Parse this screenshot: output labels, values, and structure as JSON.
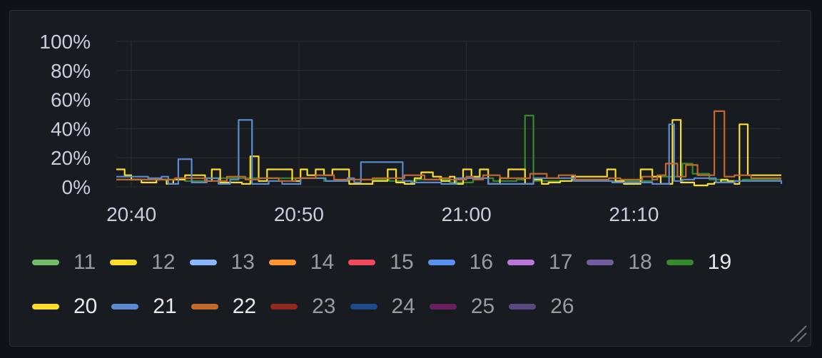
{
  "chart_data": {
    "type": "line",
    "x_ticks": [
      "20:40",
      "20:50",
      "21:00",
      "21:10"
    ],
    "x_tick_minutes": [
      0,
      10,
      20,
      30
    ],
    "x_range_minutes": [
      -0.9,
      38.8
    ],
    "y_ticks": [
      "0%",
      "20%",
      "40%",
      "60%",
      "80%",
      "100%"
    ],
    "ylim": [
      0,
      100
    ],
    "grid": true,
    "legend_position": "bottom",
    "legend": [
      {
        "name": "11",
        "color": "#73bf69",
        "visible": false
      },
      {
        "name": "12",
        "color": "#fade2a",
        "visible": false
      },
      {
        "name": "13",
        "color": "#8ab8ff",
        "visible": false
      },
      {
        "name": "14",
        "color": "#ff9830",
        "visible": false
      },
      {
        "name": "15",
        "color": "#f2495c",
        "visible": false
      },
      {
        "name": "16",
        "color": "#5794f2",
        "visible": false
      },
      {
        "name": "17",
        "color": "#b877d9",
        "visible": false
      },
      {
        "name": "18",
        "color": "#705da0",
        "visible": false
      },
      {
        "name": "19",
        "color": "#37872d",
        "visible": true
      },
      {
        "name": "20",
        "color": "#fade2a",
        "visible": true
      },
      {
        "name": "21",
        "color": "#5b8bd0",
        "visible": true
      },
      {
        "name": "22",
        "color": "#c4692e",
        "visible": true
      },
      {
        "name": "23",
        "color": "#8e2a1e",
        "visible": false
      },
      {
        "name": "24",
        "color": "#1f4a8a",
        "visible": false
      },
      {
        "name": "25",
        "color": "#6a1f5e",
        "visible": false
      },
      {
        "name": "26",
        "color": "#5a4a82",
        "visible": false
      }
    ],
    "series": [
      {
        "name": "19",
        "color": "#37872d",
        "x": [
          -0.9,
          3.2,
          4.4,
          11.5,
          13.0,
          15.4,
          17.0,
          19.0,
          20.4,
          21.6,
          23.0,
          23.5,
          24.0,
          26.3,
          28.4,
          31.1,
          32.9,
          33.5,
          34.5,
          35.2,
          36.5,
          38.8
        ],
        "y": [
          5,
          4,
          6,
          4,
          5,
          4,
          5,
          3,
          6,
          4,
          5,
          49,
          4,
          5,
          4,
          7,
          16,
          9,
          5,
          4,
          5,
          5
        ]
      },
      {
        "name": "20",
        "color": "#fade2a",
        "x": [
          -0.9,
          -0.4,
          0,
          0.6,
          1.5,
          2.1,
          2.5,
          3.2,
          4.4,
          4.8,
          5.3,
          6.6,
          7.1,
          7.6,
          8.1,
          8.6,
          9.6,
          10.1,
          10.5,
          11.0,
          11.5,
          12.0,
          13.0,
          13.9,
          14.4,
          15.3,
          15.8,
          16.3,
          16.9,
          17.3,
          18.0,
          18.5,
          19.0,
          19.3,
          19.8,
          20.3,
          20.8,
          21.3,
          22.0,
          22.5,
          23.5,
          24.0,
          24.5,
          24.9,
          25.6,
          26.3,
          27.0,
          28.4,
          28.9,
          29.4,
          30.4,
          31.1,
          31.6,
          32.3,
          32.8,
          33.6,
          34.4,
          34.8,
          35.2,
          35.6,
          36.0,
          36.3,
          36.8,
          37.3,
          38.8
        ],
        "y": [
          12,
          8,
          5,
          3,
          5,
          2,
          5,
          8,
          4,
          12,
          3,
          2,
          21,
          4,
          12,
          12,
          4,
          12,
          8,
          12,
          8,
          12,
          2,
          2,
          4,
          12,
          3,
          2,
          6,
          10,
          7,
          4,
          7,
          2,
          12,
          7,
          12,
          2,
          6,
          12,
          2,
          5,
          2,
          3,
          4,
          7,
          7,
          12,
          4,
          2,
          12,
          7,
          2,
          46,
          3,
          1,
          2,
          3,
          5,
          4,
          2,
          43,
          8,
          8,
          8
        ],
        "note": ""
      },
      {
        "name": "21",
        "color": "#5b8bd0",
        "x": [
          -0.9,
          1.0,
          1.8,
          2.2,
          2.8,
          3.6,
          4.5,
          5.2,
          5.9,
          6.4,
          7.2,
          8.2,
          9.0,
          10.1,
          11.6,
          12.9,
          13.3,
          13.7,
          16.2,
          16.7,
          18.5,
          19.4,
          21.3,
          24.0,
          26.4,
          28.7,
          31.1,
          32.1,
          32.4,
          32.9,
          33.6,
          34.9,
          36.0,
          38.8
        ],
        "y": [
          7,
          6,
          7,
          2,
          19,
          3,
          6,
          2,
          5,
          46,
          2,
          4,
          2,
          6,
          4,
          6,
          3,
          17,
          4,
          3,
          2,
          6,
          2,
          6,
          4,
          3,
          2,
          43,
          4,
          5,
          6,
          3,
          4,
          2
        ]
      },
      {
        "name": "22",
        "color": "#c4692e",
        "x": [
          -0.9,
          2.6,
          4.4,
          5.7,
          6.8,
          7.6,
          8.8,
          9.8,
          11.0,
          12.1,
          14.4,
          16.3,
          17.5,
          18.4,
          19.0,
          20.0,
          20.4,
          21.0,
          22.0,
          23.8,
          24.8,
          25.5,
          26.5,
          28.5,
          29.2,
          30.5,
          31.1,
          31.4,
          31.9,
          32.6,
          33.1,
          33.8,
          34.8,
          35.4,
          36.0,
          37.0,
          38.8
        ],
        "y": [
          5,
          6,
          4,
          7,
          5,
          6,
          4,
          6,
          8,
          5,
          6,
          8,
          5,
          6,
          5,
          7,
          5,
          8,
          6,
          9,
          6,
          8,
          5,
          6,
          5,
          7,
          5,
          8,
          16,
          7,
          15,
          8,
          52,
          7,
          8,
          6,
          6
        ]
      }
    ]
  }
}
